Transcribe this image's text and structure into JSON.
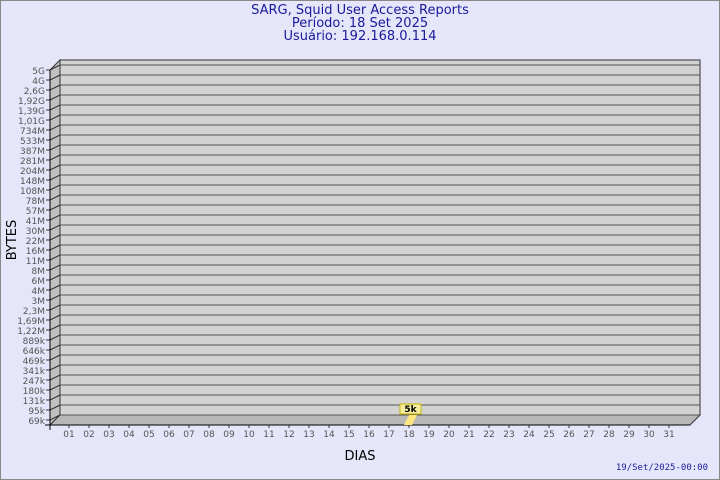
{
  "header": {
    "title": "SARG, Squid User Access Reports",
    "period": "Período: 18 Set 2025",
    "user": "Usuário: 192.168.0.114"
  },
  "footer": {
    "timestamp": "19/Set/2025-00:00"
  },
  "chart_data": {
    "type": "bar",
    "title": "SARG, Squid User Access Reports",
    "xlabel": "DIAS",
    "ylabel": "BYTES",
    "y_tick_labels": [
      "5G",
      "4G",
      "2,6G",
      "1,92G",
      "1,39G",
      "1,01G",
      "734M",
      "533M",
      "387M",
      "281M",
      "204M",
      "148M",
      "108M",
      "78M",
      "57M",
      "41M",
      "30M",
      "22M",
      "16M",
      "11M",
      "8M",
      "6M",
      "4M",
      "3M",
      "2,3M",
      "1,69M",
      "1,22M",
      "889k",
      "646k",
      "469k",
      "341k",
      "247k",
      "180k",
      "131k",
      "95k",
      "69k"
    ],
    "categories": [
      "01",
      "02",
      "03",
      "04",
      "05",
      "06",
      "07",
      "08",
      "09",
      "10",
      "11",
      "12",
      "13",
      "14",
      "15",
      "16",
      "17",
      "18",
      "19",
      "20",
      "21",
      "22",
      "23",
      "24",
      "25",
      "26",
      "27",
      "28",
      "29",
      "30",
      "31"
    ],
    "y_scale": "log",
    "grid": true,
    "bars": [
      {
        "category": "18",
        "value": 5000,
        "label": "5k"
      }
    ],
    "colors": {
      "bar": "#ffe680",
      "plot_bg": "#d3d3d3",
      "label_bg": "#f5eea0",
      "text": "#1a1a9a"
    }
  }
}
